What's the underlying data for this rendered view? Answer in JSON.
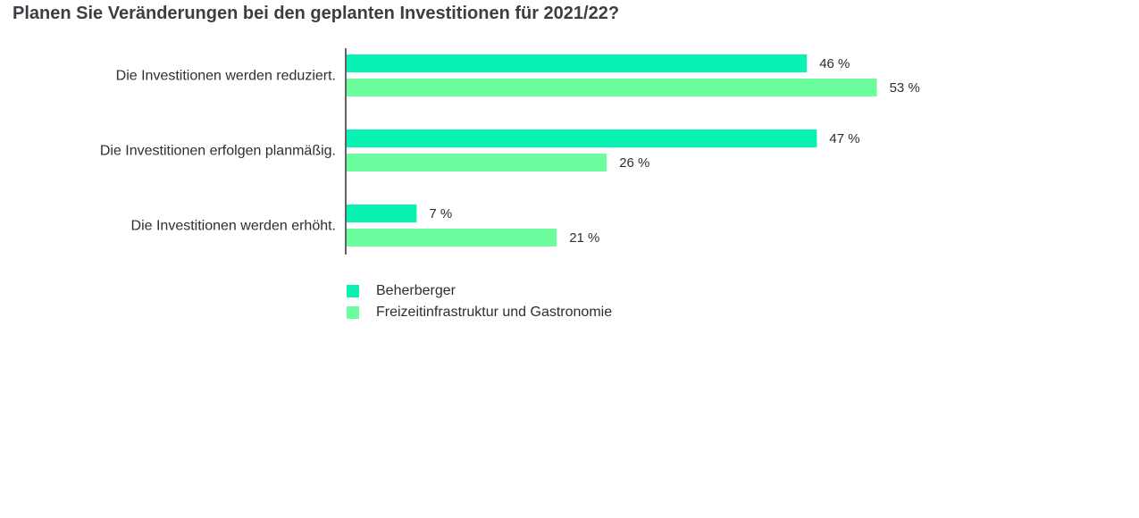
{
  "chart_data": {
    "type": "bar",
    "orientation": "horizontal",
    "title": "Planen Sie Veränderungen bei den geplanten Investitionen für 2021/22?",
    "categories": [
      "Die Investitionen werden reduziert.",
      "Die Investitionen erfolgen planmäßig.",
      "Die Investitionen werden erhöht."
    ],
    "series": [
      {
        "name": "Beherberger",
        "color": "#07f2b3",
        "values": [
          46,
          47,
          7
        ],
        "labels": [
          "46 %",
          "47 %",
          "7 %"
        ]
      },
      {
        "name": "Freizeitinfrastruktur und Gastronomie",
        "color": "#6cfd9f",
        "values": [
          53,
          26,
          21
        ],
        "labels": [
          "53 %",
          "26 %",
          "21 %"
        ]
      }
    ],
    "xlim": [
      0,
      100
    ],
    "grid": false,
    "legend_position": "bottom-left"
  }
}
